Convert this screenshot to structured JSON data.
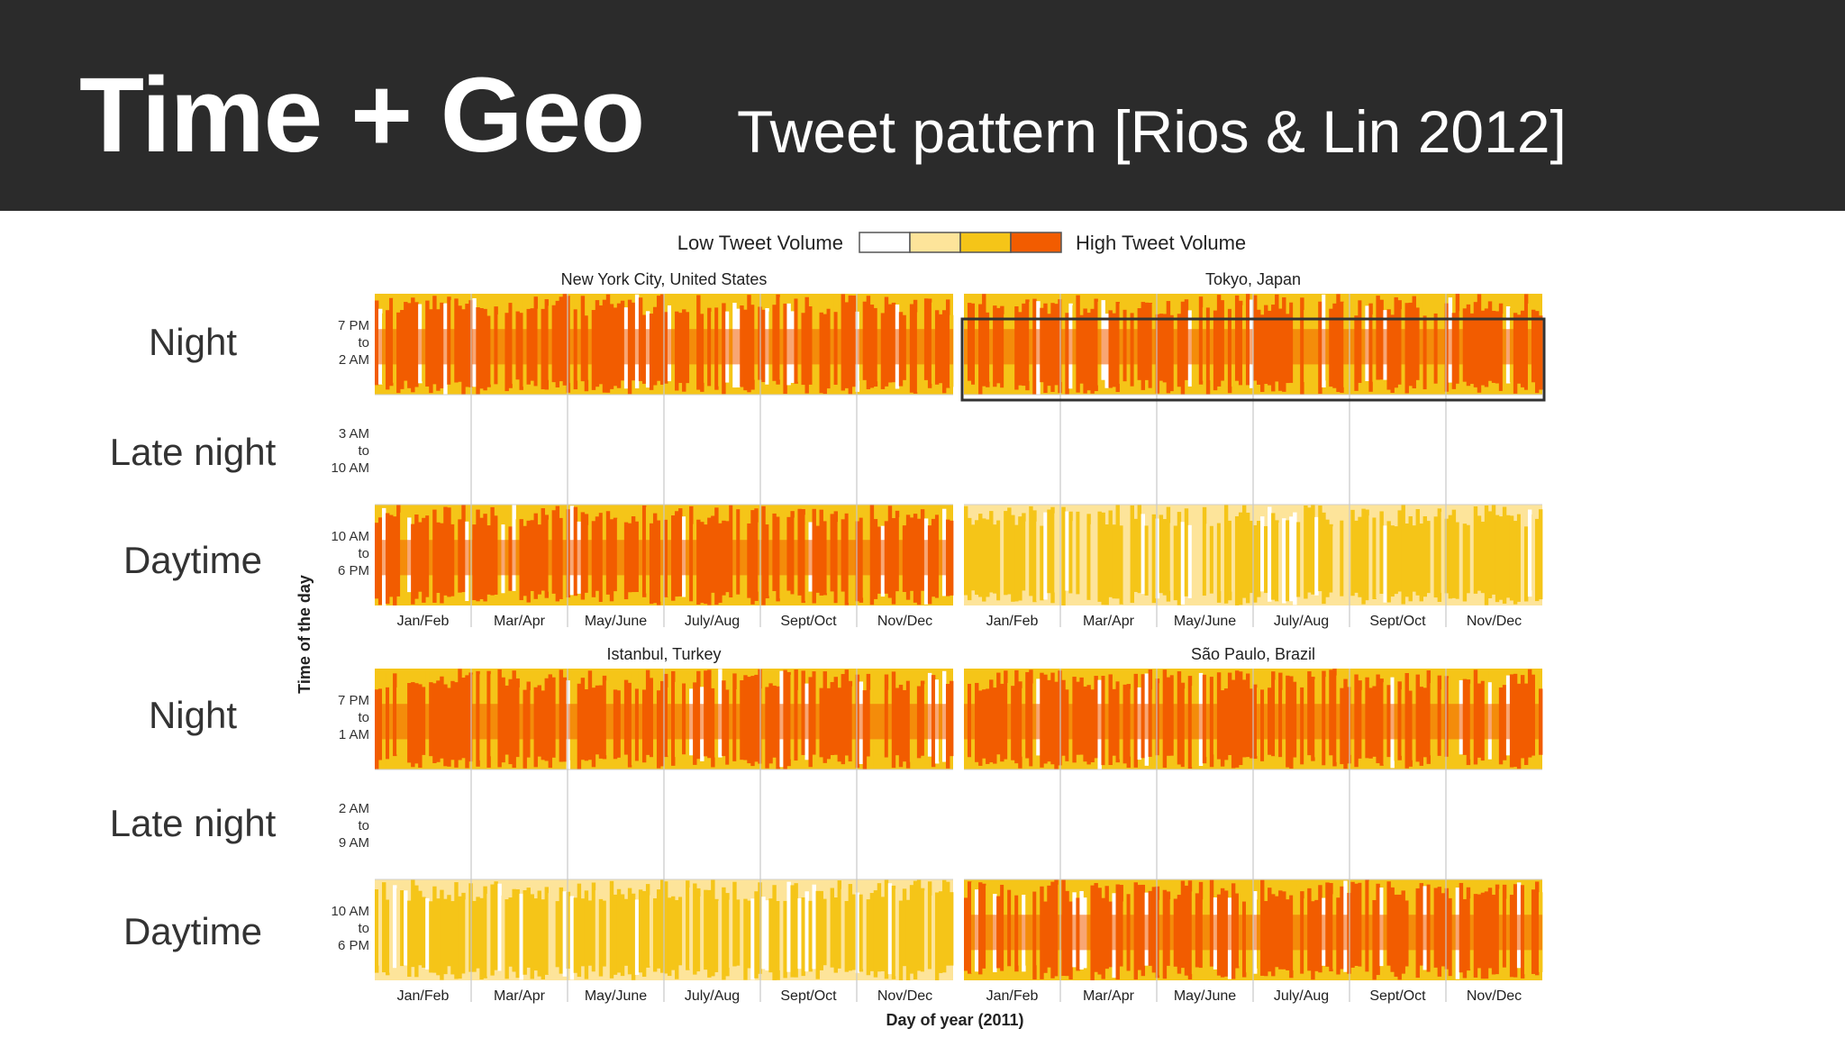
{
  "header": {
    "title": "Time + Geo",
    "subtitle": "Tweet pattern [Rios & Lin 2012]"
  },
  "row_labels": [
    "Night",
    "Late night",
    "Daytime",
    "Night",
    "Late night",
    "Daytime"
  ],
  "colors": {
    "header_bg": "#2b2b2b",
    "levels": [
      "#ffffff",
      "#fde49a",
      "#f5c518",
      "#f25c00"
    ]
  },
  "chart_data": [
    {
      "type": "heatmap",
      "title": "New York City, United States",
      "categories": [
        "Jan/Feb",
        "Mar/Apr",
        "May/June",
        "July/Aug",
        "Sept/Oct",
        "Nov/Dec"
      ],
      "bands": [
        {
          "label": [
            "7 PM",
            "to",
            "2 AM"
          ],
          "level": 3
        },
        {
          "label": [
            "3 AM",
            "to",
            "10 AM"
          ],
          "level": 0
        },
        {
          "label": [
            "10 AM",
            "to",
            "6 PM"
          ],
          "level": 3
        }
      ]
    },
    {
      "type": "heatmap",
      "title": "Tokyo, Japan",
      "categories": [
        "Jan/Feb",
        "Mar/Apr",
        "May/June",
        "July/Aug",
        "Sept/Oct",
        "Nov/Dec"
      ],
      "bands": [
        {
          "level": 3
        },
        {
          "level": 0
        },
        {
          "level": 2
        }
      ],
      "highlighted_band": "Night"
    },
    {
      "type": "heatmap",
      "title": "Istanbul, Turkey",
      "categories": [
        "Jan/Feb",
        "Mar/Apr",
        "May/June",
        "July/Aug",
        "Sept/Oct",
        "Nov/Dec"
      ],
      "bands": [
        {
          "label": [
            "7 PM",
            "to",
            "1 AM"
          ],
          "level": 3
        },
        {
          "label": [
            "2 AM",
            "to",
            "9 AM"
          ],
          "level": 0
        },
        {
          "label": [
            "10 AM",
            "to",
            "6 PM"
          ],
          "level": 2
        }
      ]
    },
    {
      "type": "heatmap",
      "title": "São Paulo, Brazil",
      "categories": [
        "Jan/Feb",
        "Mar/Apr",
        "May/June",
        "July/Aug",
        "Sept/Oct",
        "Nov/Dec"
      ],
      "bands": [
        {
          "level": 3
        },
        {
          "level": 0
        },
        {
          "level": 3
        }
      ]
    }
  ],
  "legend": {
    "low_label": "Low Tweet Volume",
    "high_label": "High Tweet Volume"
  },
  "axes": {
    "xlabel": "Day of year (2011)",
    "ylabel": "Time of the day"
  }
}
